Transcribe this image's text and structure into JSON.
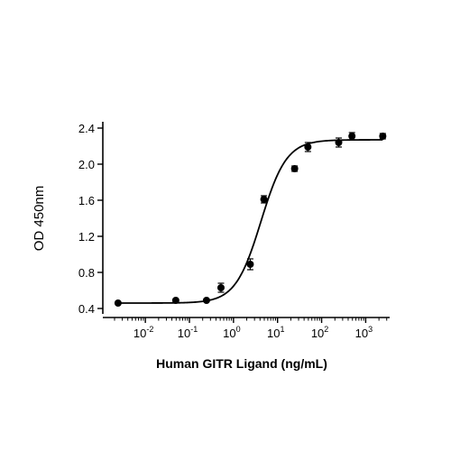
{
  "chart_data": {
    "type": "scatter",
    "title": "",
    "xlabel": "Human GITR Ligand (ng/mL)",
    "ylabel": "OD 450nm",
    "x_scale": "log",
    "xlim": [
      0.002,
      3500
    ],
    "ylim": [
      0.35,
      2.45
    ],
    "grid": false,
    "legend": "none",
    "y_ticks": [
      {
        "value": 0.4,
        "label": "0.4"
      },
      {
        "value": 0.8,
        "label": "0.8"
      },
      {
        "value": 1.2,
        "label": "1.2"
      },
      {
        "value": 1.6,
        "label": "1.6"
      },
      {
        "value": 2.0,
        "label": "2.0"
      },
      {
        "value": 2.4,
        "label": "2.4"
      }
    ],
    "x_ticks": [
      {
        "value": 0.01,
        "base": "10",
        "exp": "-2"
      },
      {
        "value": 0.1,
        "base": "10",
        "exp": "-1"
      },
      {
        "value": 1,
        "base": "10",
        "exp": "0"
      },
      {
        "value": 10,
        "base": "10",
        "exp": "1"
      },
      {
        "value": 100,
        "base": "10",
        "exp": "2"
      },
      {
        "value": 1000,
        "base": "10",
        "exp": "3"
      }
    ],
    "points": [
      {
        "x": 0.0024,
        "y": 0.46,
        "err": 0.0
      },
      {
        "x": 0.049,
        "y": 0.49,
        "err": 0.0
      },
      {
        "x": 0.244,
        "y": 0.49,
        "err": 0.0
      },
      {
        "x": 0.52,
        "y": 0.63,
        "err": 0.05
      },
      {
        "x": 2.4,
        "y": 0.89,
        "err": 0.06
      },
      {
        "x": 4.9,
        "y": 1.61,
        "err": 0.04
      },
      {
        "x": 24.4,
        "y": 1.95,
        "err": 0.03
      },
      {
        "x": 48.8,
        "y": 2.19,
        "err": 0.05
      },
      {
        "x": 244,
        "y": 2.24,
        "err": 0.05
      },
      {
        "x": 488,
        "y": 2.31,
        "err": 0.04
      },
      {
        "x": 2440,
        "y": 2.31,
        "err": 0.03
      }
    ],
    "fit": {
      "model": "4PL",
      "bottom": 0.46,
      "top": 2.27,
      "ec50": 4.2,
      "hill": 1.5
    },
    "colors": {
      "line": "#000000",
      "points": "#000000"
    }
  }
}
